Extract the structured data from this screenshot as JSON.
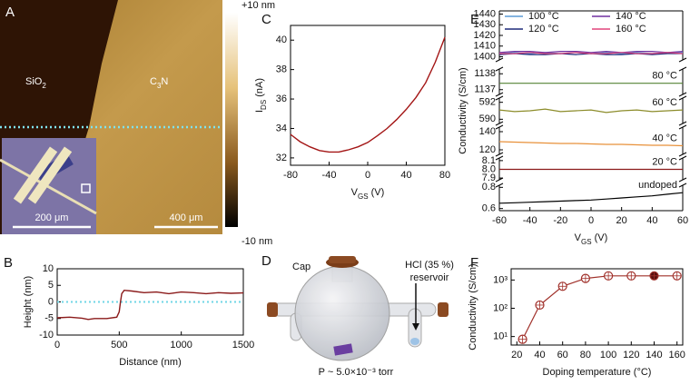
{
  "images": {
    "a": {
      "panel_label": "A",
      "sio2": [
        "SiO",
        "2"
      ],
      "c3n": [
        "C",
        "3",
        "N"
      ],
      "inset_scale": "200 μm",
      "scale": "400 μm",
      "colorbar_max": "+10 nm",
      "colorbar_min": "-10 nm"
    },
    "d": {
      "panel_label": "D",
      "cap": "Cap",
      "acid": "HCl (35 %)",
      "reservoir": "reservoir",
      "pressure": "P ~ 5.0×10⁻³ torr"
    }
  },
  "chart_data": [
    {
      "type": "line",
      "panel_label": "B",
      "xlabel": "Distance (nm)",
      "ylabel": "Height (nm)",
      "x": [
        0,
        100,
        200,
        250,
        300,
        400,
        480,
        500,
        510,
        520,
        540,
        600,
        700,
        800,
        900,
        1000,
        1100,
        1200,
        1300,
        1400,
        1500
      ],
      "series": [
        {
          "color": "#8b1a1a",
          "values": [
            -4.8,
            -4.6,
            -4.9,
            -5.3,
            -5.0,
            -5.0,
            -4.6,
            -3,
            0,
            2.5,
            3.5,
            3.3,
            2.8,
            3.0,
            2.5,
            3.0,
            2.8,
            2.5,
            2.8,
            2.6,
            2.7
          ]
        }
      ],
      "reference_line": 0,
      "reference_color": "#6fd6e6",
      "xlim": [
        0,
        1500
      ],
      "xticks": [
        0,
        500,
        1000,
        1500
      ],
      "ylim": [
        -10,
        10
      ],
      "yticks": [
        -10,
        -5,
        0,
        5,
        10
      ]
    },
    {
      "type": "line",
      "panel_label": "C",
      "xlabel": [
        "V",
        "GS",
        " (V)"
      ],
      "ylabel": [
        "I",
        "DS",
        " (nA)"
      ],
      "x": [
        -80,
        -70,
        -60,
        -50,
        -40,
        -30,
        -20,
        -10,
        0,
        10,
        20,
        30,
        40,
        50,
        60,
        70,
        80
      ],
      "series": [
        {
          "color": "#a31515",
          "values": [
            33.6,
            33.1,
            32.75,
            32.5,
            32.4,
            32.4,
            32.55,
            32.75,
            33.05,
            33.5,
            34.0,
            34.6,
            35.3,
            36.1,
            37.1,
            38.5,
            40.2
          ]
        }
      ],
      "xlim": [
        -80,
        80
      ],
      "xticks": [
        -80,
        -40,
        0,
        40,
        80
      ],
      "ylim": [
        31.5,
        41
      ],
      "yticks": [
        32,
        34,
        36,
        38,
        40
      ]
    },
    {
      "type": "broken",
      "panel_label": "E",
      "xlabel": [
        "V",
        "GS",
        " (V)"
      ],
      "ylabel": "Conductivity (S/cm)",
      "x": [
        -60,
        -50,
        -40,
        -30,
        -20,
        -10,
        0,
        10,
        20,
        30,
        40,
        50,
        60
      ],
      "xlim": [
        -60,
        60
      ],
      "xticks": [
        -60,
        -40,
        -20,
        0,
        20,
        40,
        60
      ],
      "segments": [
        {
          "ylim": [
            1397,
            1443
          ],
          "yticks": [
            1400,
            1410,
            1420,
            1430,
            1440
          ],
          "legend": true,
          "series": [
            {
              "name": "100 °C",
              "color": "#5b9bd5",
              "values": [
                1403,
                1404,
                1403,
                1404,
                1403,
                1404,
                1403,
                1404,
                1403,
                1404,
                1403,
                1404,
                1404
              ]
            },
            {
              "name": "140 °C",
              "color": "#7030a0",
              "values": [
                1404,
                1405,
                1405,
                1404,
                1405,
                1405,
                1404,
                1405,
                1404,
                1405,
                1405,
                1404,
                1405
              ]
            },
            {
              "name": "120 °C",
              "color": "#1f2a7a",
              "values": [
                1402,
                1403,
                1402,
                1402,
                1403,
                1402,
                1403,
                1402,
                1402,
                1403,
                1402,
                1403,
                1403
              ]
            },
            {
              "name": "160 °C",
              "color": "#e0457b",
              "values": [
                1403,
                1403,
                1404,
                1403,
                1403,
                1404,
                1403,
                1403,
                1404,
                1403,
                1403,
                1404,
                1403
              ]
            }
          ]
        },
        {
          "ylim": [
            1136.7,
            1138.3
          ],
          "yticks": [
            1137,
            1138
          ],
          "series": [
            {
              "name": "80 °C",
              "color": "#548235",
              "values": [
                1137.4,
                1137.4,
                1137.4,
                1137.4,
                1137.4,
                1137.4,
                1137.4,
                1137.4,
                1137.4,
                1137.4,
                1137.4,
                1137.4,
                1137.4
              ]
            }
          ]
        },
        {
          "ylim": [
            589.5,
            592.5
          ],
          "yticks": [
            590,
            592
          ],
          "series": [
            {
              "name": "60 °C",
              "color": "#8c8c2a",
              "values": [
                591.1,
                590.9,
                591.0,
                591.2,
                590.9,
                591.0,
                591.1,
                590.8,
                591.0,
                591.1,
                590.9,
                591.0,
                591.1
              ]
            }
          ]
        },
        {
          "ylim": [
            115,
            145
          ],
          "yticks": [
            120,
            140
          ],
          "series": [
            {
              "name": "40 °C",
              "color": "#e8913a",
              "values": [
                129,
                128.5,
                128,
                127.5,
                127,
                127,
                126.5,
                126,
                126,
                125.5,
                125,
                125,
                124.5
              ]
            }
          ]
        },
        {
          "ylim": [
            7.88,
            8.13
          ],
          "yticks": [
            7.9,
            {
              "value": 8,
              "label": "8.0"
            },
            8.1
          ],
          "series": [
            {
              "name": "20 °C",
              "color": "#8b1a1a",
              "values": [
                8,
                8,
                8,
                8,
                8,
                8,
                8,
                8,
                8,
                8,
                8,
                8,
                8
              ]
            }
          ]
        },
        {
          "ylim": [
            0.58,
            0.82
          ],
          "yticks": [
            0.6,
            0.8
          ],
          "series": [
            {
              "name": "undoped",
              "color": "#000000",
              "values": [
                0.65,
                0.655,
                0.66,
                0.665,
                0.67,
                0.675,
                0.68,
                0.69,
                0.7,
                0.71,
                0.72,
                0.735,
                0.75
              ]
            }
          ]
        }
      ]
    },
    {
      "type": "scatter",
      "panel_label": "F",
      "xlabel": "Doping temperature (°C)",
      "ylabel": "Conductivity (S/cm)",
      "log_y": true,
      "color": "#a0302a",
      "x": [
        25,
        40,
        60,
        80,
        100,
        120,
        140,
        160
      ],
      "values": [
        8,
        130,
        600,
        1137,
        1402,
        1403,
        1404,
        1404
      ],
      "fills": [
        "#ffffff",
        "#ffffff",
        "#ffffff",
        "#ffffff",
        "#ffffff",
        "#ffffff",
        "#5a0f0f",
        "#ffffff"
      ],
      "xlim": [
        15,
        165
      ],
      "xticks": [
        20,
        40,
        60,
        80,
        100,
        120,
        140,
        160
      ],
      "ylim": [
        5,
        2500
      ],
      "yticks": [
        {
          "value": 10,
          "label": "10¹"
        },
        {
          "value": 100,
          "label": "10²"
        },
        {
          "value": 1000,
          "label": "10³"
        }
      ]
    }
  ]
}
